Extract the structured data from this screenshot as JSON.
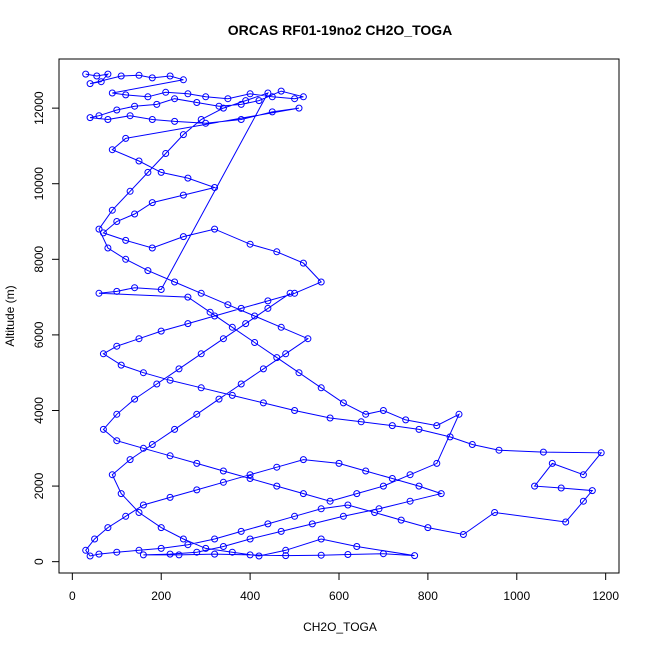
{
  "chart_data": {
    "type": "scatter",
    "title": "ORCAS RF01-19no2 CH2O_TOGA",
    "xlabel": "CH2O_TOGA",
    "ylabel": "Altitude (m)",
    "xlim": [
      -30,
      1230
    ],
    "ylim": [
      -300,
      13300
    ],
    "xticks": [
      0,
      200,
      400,
      600,
      800,
      1000,
      1200
    ],
    "yticks": [
      0,
      2000,
      4000,
      6000,
      8000,
      10000,
      12000
    ],
    "grid": false,
    "marker": "open-circle",
    "connected": true,
    "color": "#0000ff",
    "series": [
      {
        "values": [
          [
            30,
            12900
          ],
          [
            55,
            12850
          ],
          [
            80,
            12900
          ],
          [
            65,
            12700
          ],
          [
            40,
            12650
          ],
          [
            110,
            12850
          ],
          [
            150,
            12870
          ],
          [
            180,
            12800
          ],
          [
            220,
            12850
          ],
          [
            250,
            12750
          ],
          [
            90,
            12400
          ],
          [
            120,
            12350
          ],
          [
            170,
            12300
          ],
          [
            210,
            12420
          ],
          [
            260,
            12380
          ],
          [
            300,
            12300
          ],
          [
            350,
            12250
          ],
          [
            400,
            12380
          ],
          [
            450,
            12300
          ],
          [
            500,
            12250
          ],
          [
            520,
            12300
          ],
          [
            470,
            12450
          ],
          [
            420,
            12200
          ],
          [
            380,
            12100
          ],
          [
            330,
            12050
          ],
          [
            280,
            12150
          ],
          [
            230,
            12250
          ],
          [
            190,
            12100
          ],
          [
            140,
            12050
          ],
          [
            100,
            11950
          ],
          [
            60,
            11800
          ],
          [
            40,
            11750
          ],
          [
            80,
            11700
          ],
          [
            130,
            11800
          ],
          [
            180,
            11700
          ],
          [
            230,
            11650
          ],
          [
            300,
            11600
          ],
          [
            380,
            11700
          ],
          [
            450,
            11900
          ],
          [
            510,
            12000
          ],
          [
            120,
            11200
          ],
          [
            90,
            10900
          ],
          [
            150,
            10600
          ],
          [
            200,
            10300
          ],
          [
            260,
            10150
          ],
          [
            320,
            9900
          ],
          [
            250,
            9700
          ],
          [
            180,
            9500
          ],
          [
            140,
            9200
          ],
          [
            100,
            9000
          ],
          [
            70,
            8700
          ],
          [
            120,
            8500
          ],
          [
            180,
            8300
          ],
          [
            250,
            8600
          ],
          [
            320,
            8800
          ],
          [
            400,
            8400
          ],
          [
            460,
            8200
          ],
          [
            520,
            7900
          ],
          [
            560,
            7400
          ],
          [
            500,
            7100
          ],
          [
            440,
            6900
          ],
          [
            380,
            6700
          ],
          [
            320,
            6500
          ],
          [
            260,
            6300
          ],
          [
            200,
            6100
          ],
          [
            150,
            5900
          ],
          [
            100,
            5700
          ],
          [
            70,
            5500
          ],
          [
            110,
            5200
          ],
          [
            160,
            5000
          ],
          [
            220,
            4800
          ],
          [
            290,
            4600
          ],
          [
            360,
            4400
          ],
          [
            430,
            4200
          ],
          [
            500,
            4000
          ],
          [
            580,
            3800
          ],
          [
            650,
            3700
          ],
          [
            720,
            3600
          ],
          [
            780,
            3500
          ],
          [
            850,
            3300
          ],
          [
            900,
            3100
          ],
          [
            960,
            2950
          ],
          [
            1060,
            2900
          ],
          [
            1190,
            2880
          ],
          [
            1150,
            2300
          ],
          [
            1080,
            2600
          ],
          [
            1040,
            2000
          ],
          [
            1100,
            1950
          ],
          [
            1170,
            1880
          ],
          [
            1150,
            1600
          ],
          [
            1110,
            1050
          ],
          [
            950,
            1300
          ],
          [
            880,
            720
          ],
          [
            800,
            900
          ],
          [
            740,
            1100
          ],
          [
            680,
            1300
          ],
          [
            620,
            1500
          ],
          [
            560,
            1400
          ],
          [
            500,
            1200
          ],
          [
            440,
            1000
          ],
          [
            380,
            800
          ],
          [
            320,
            600
          ],
          [
            260,
            450
          ],
          [
            200,
            350
          ],
          [
            150,
            300
          ],
          [
            100,
            250
          ],
          [
            60,
            200
          ],
          [
            40,
            150
          ],
          [
            30,
            300
          ],
          [
            50,
            600
          ],
          [
            80,
            900
          ],
          [
            120,
            1200
          ],
          [
            160,
            1500
          ],
          [
            220,
            1700
          ],
          [
            280,
            1900
          ],
          [
            340,
            2100
          ],
          [
            400,
            2300
          ],
          [
            460,
            2500
          ],
          [
            520,
            2700
          ],
          [
            600,
            2600
          ],
          [
            660,
            2400
          ],
          [
            720,
            2200
          ],
          [
            780,
            2000
          ],
          [
            830,
            1800
          ],
          [
            760,
            1600
          ],
          [
            690,
            1400
          ],
          [
            610,
            1200
          ],
          [
            540,
            1000
          ],
          [
            470,
            800
          ],
          [
            400,
            600
          ],
          [
            340,
            400
          ],
          [
            280,
            250
          ],
          [
            220,
            200
          ],
          [
            160,
            180
          ],
          [
            240,
            180
          ],
          [
            320,
            200
          ],
          [
            400,
            180
          ],
          [
            480,
            160
          ],
          [
            560,
            170
          ],
          [
            620,
            190
          ],
          [
            700,
            210
          ],
          [
            770,
            160
          ],
          [
            640,
            400
          ],
          [
            560,
            600
          ],
          [
            480,
            300
          ],
          [
            420,
            150
          ],
          [
            360,
            250
          ],
          [
            300,
            350
          ],
          [
            250,
            600
          ],
          [
            200,
            900
          ],
          [
            150,
            1300
          ],
          [
            110,
            1800
          ],
          [
            90,
            2300
          ],
          [
            130,
            2700
          ],
          [
            180,
            3100
          ],
          [
            230,
            3500
          ],
          [
            280,
            3900
          ],
          [
            330,
            4300
          ],
          [
            380,
            4700
          ],
          [
            430,
            5100
          ],
          [
            480,
            5500
          ],
          [
            530,
            5900
          ],
          [
            470,
            6200
          ],
          [
            410,
            6500
          ],
          [
            350,
            6800
          ],
          [
            290,
            7100
          ],
          [
            230,
            7400
          ],
          [
            170,
            7700
          ],
          [
            120,
            8000
          ],
          [
            80,
            8300
          ],
          [
            60,
            8800
          ],
          [
            90,
            9300
          ],
          [
            130,
            9800
          ],
          [
            170,
            10300
          ],
          [
            210,
            10800
          ],
          [
            250,
            11300
          ],
          [
            290,
            11700
          ],
          [
            340,
            12000
          ],
          [
            390,
            12200
          ],
          [
            440,
            12400
          ],
          [
            200,
            7200
          ],
          [
            140,
            7250
          ],
          [
            100,
            7150
          ],
          [
            60,
            7100
          ],
          [
            260,
            7000
          ],
          [
            310,
            6600
          ],
          [
            360,
            6200
          ],
          [
            410,
            5800
          ],
          [
            460,
            5400
          ],
          [
            510,
            5000
          ],
          [
            560,
            4600
          ],
          [
            610,
            4200
          ],
          [
            660,
            3900
          ],
          [
            700,
            4000
          ],
          [
            750,
            3750
          ],
          [
            820,
            3600
          ],
          [
            870,
            3900
          ],
          [
            820,
            2600
          ],
          [
            760,
            2300
          ],
          [
            700,
            2000
          ],
          [
            640,
            1800
          ],
          [
            580,
            1600
          ],
          [
            520,
            1800
          ],
          [
            460,
            2000
          ],
          [
            400,
            2200
          ],
          [
            340,
            2400
          ],
          [
            280,
            2600
          ],
          [
            220,
            2800
          ],
          [
            160,
            3000
          ],
          [
            100,
            3200
          ],
          [
            70,
            3500
          ],
          [
            100,
            3900
          ],
          [
            140,
            4300
          ],
          [
            190,
            4700
          ],
          [
            240,
            5100
          ],
          [
            290,
            5500
          ],
          [
            340,
            5900
          ],
          [
            390,
            6300
          ],
          [
            440,
            6700
          ],
          [
            490,
            7100
          ]
        ]
      }
    ]
  }
}
